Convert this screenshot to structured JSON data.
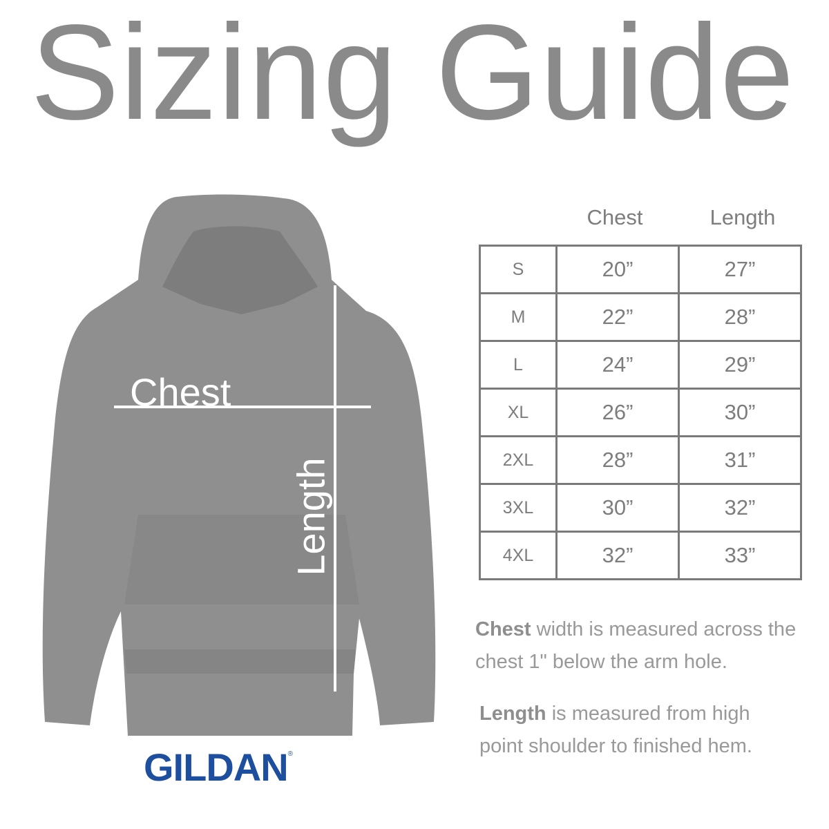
{
  "title": "Sizing Guide",
  "diagram": {
    "chest_label": "Chest",
    "length_label": "Length"
  },
  "brand": {
    "name": "GILDAN",
    "mark": "®",
    "color": "#1d4f9e"
  },
  "table": {
    "headers": [
      "Chest",
      "Length"
    ],
    "rows": [
      {
        "size": "S",
        "chest": "20”",
        "length": "27”"
      },
      {
        "size": "M",
        "chest": "22”",
        "length": "28”"
      },
      {
        "size": "L",
        "chest": "24”",
        "length": "29”"
      },
      {
        "size": "XL",
        "chest": "26”",
        "length": "30”"
      },
      {
        "size": "2XL",
        "chest": "28”",
        "length": "31”"
      },
      {
        "size": "3XL",
        "chest": "30”",
        "length": "32”"
      },
      {
        "size": "4XL",
        "chest": "32”",
        "length": "33”"
      }
    ]
  },
  "notes": [
    {
      "bold": "Chest",
      "text": " width is measured across the chest 1\" below the arm hole."
    },
    {
      "bold": "Length",
      "text": " is measured from high point shoulder to finished hem."
    }
  ]
}
